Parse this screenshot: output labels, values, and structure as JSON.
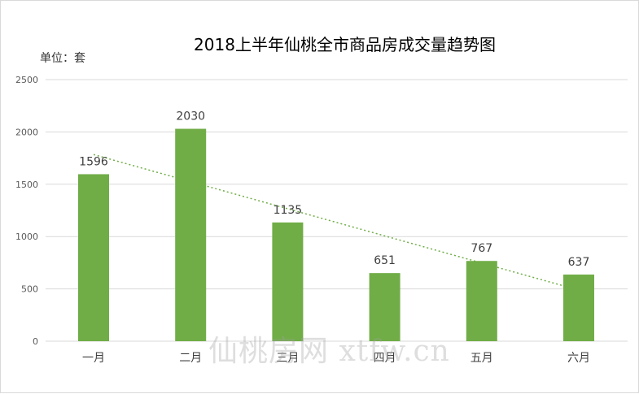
{
  "unit_label": "单位：套",
  "watermark": "仙桃房网 xtfw.cn",
  "colors": {
    "bar": "#70ad47",
    "trendline": "#70ad47",
    "grid": "#d9d9d9",
    "axis_text": "#595959",
    "label_text": "#404040"
  },
  "chart_data": {
    "type": "bar",
    "title": "2018上半年仙桃全市商品房成交量趋势图",
    "categories": [
      "一月",
      "二月",
      "三月",
      "四月",
      "五月",
      "六月"
    ],
    "values": [
      1596,
      2030,
      1135,
      651,
      767,
      637
    ],
    "ylim": [
      0,
      2500
    ],
    "yticks": [
      0,
      500,
      1000,
      1500,
      2000,
      2500
    ],
    "grid": true,
    "trendline": {
      "type": "linear",
      "style": "dotted"
    },
    "data_labels": true,
    "legend": "none"
  }
}
